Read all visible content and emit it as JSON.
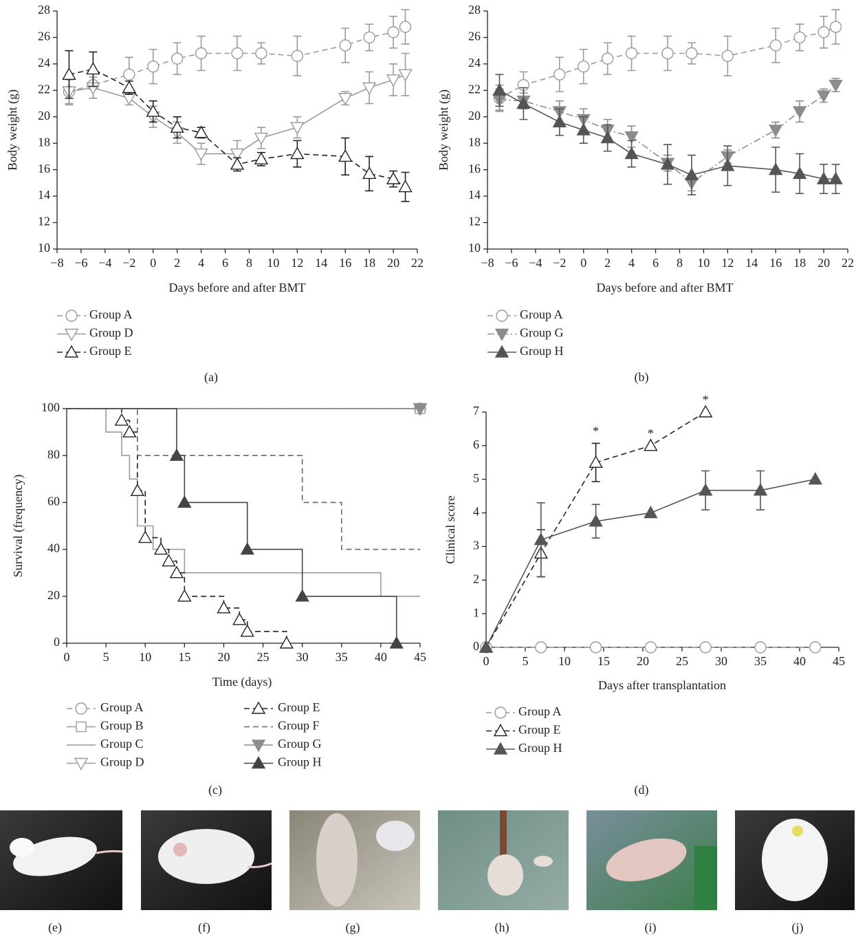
{
  "chart_data": [
    {
      "type": "line",
      "panel_label": "(a)",
      "xlabel": "Days before and after BMT",
      "ylabel": "Body weight (g)",
      "xlim": [
        -8,
        22
      ],
      "ylim": [
        10,
        28
      ],
      "xticks": [
        {
          "value": -8,
          "label": "−8"
        },
        {
          "value": -6,
          "label": "−6"
        },
        {
          "value": -4,
          "label": "−4"
        },
        {
          "value": -2,
          "label": "−2"
        },
        0,
        2,
        4,
        6,
        8,
        10,
        12,
        14,
        16,
        18,
        20,
        22
      ],
      "yticks": [
        10,
        12,
        14,
        16,
        18,
        20,
        22,
        24,
        26,
        28
      ],
      "series": [
        {
          "name": "Group A",
          "color": "#9a9a9a",
          "dash": "dashed",
          "marker": "circle",
          "filled": false,
          "x": [
            -7,
            -5,
            -2,
            0,
            2,
            4,
            7,
            9,
            12,
            16,
            18,
            20,
            21
          ],
          "values": [
            21.9,
            22.4,
            23.2,
            23.8,
            24.4,
            24.8,
            24.8,
            24.8,
            24.6,
            25.4,
            26.0,
            26.4,
            26.8
          ],
          "errors": [
            1.0,
            1.0,
            1.3,
            1.3,
            1.2,
            1.3,
            1.3,
            0.8,
            1.5,
            1.3,
            1.0,
            1.2,
            1.3
          ]
        },
        {
          "name": "Group D",
          "color": "#9a9a9a",
          "dash": "solid",
          "marker": "triangle-down",
          "filled": false,
          "x": [
            -7,
            -5,
            -2,
            0,
            2,
            4,
            7,
            9,
            12,
            16,
            18,
            20,
            21
          ],
          "values": [
            21.9,
            22.2,
            21.4,
            20.0,
            18.8,
            17.2,
            17.2,
            18.4,
            19.2,
            21.4,
            22.2,
            22.8,
            23.2
          ],
          "errors": [
            0.9,
            0.8,
            0.5,
            0.8,
            0.8,
            0.8,
            1.0,
            0.8,
            0.8,
            0.5,
            1.2,
            1.2,
            1.6
          ]
        },
        {
          "name": "Group E",
          "color": "#222222",
          "dash": "dashed",
          "marker": "triangle-up",
          "filled": false,
          "x": [
            -7,
            -5,
            -2,
            0,
            2,
            4,
            7,
            9,
            12,
            16,
            18,
            20,
            21
          ],
          "values": [
            23.2,
            23.6,
            22.2,
            20.4,
            19.2,
            18.8,
            16.4,
            16.8,
            17.2,
            17.0,
            15.7,
            15.3,
            14.7
          ],
          "errors": [
            1.8,
            1.3,
            0.5,
            0.8,
            0.8,
            0.4,
            0.5,
            0.5,
            1.0,
            1.4,
            1.3,
            0.6,
            1.1
          ]
        }
      ]
    },
    {
      "type": "line",
      "panel_label": "(b)",
      "xlabel": "Days before and after BMT",
      "ylabel": "Body weight (g)",
      "xlim": [
        -8,
        22
      ],
      "ylim": [
        10,
        28
      ],
      "xticks": [
        {
          "value": -8,
          "label": "−8"
        },
        {
          "value": -6,
          "label": "−6"
        },
        {
          "value": -4,
          "label": "−4"
        },
        {
          "value": -2,
          "label": "−2"
        },
        0,
        2,
        4,
        6,
        8,
        10,
        12,
        14,
        16,
        18,
        20,
        22
      ],
      "yticks": [
        10,
        12,
        14,
        16,
        18,
        20,
        22,
        24,
        26,
        28
      ],
      "series": [
        {
          "name": "Group A",
          "color": "#9a9a9a",
          "dash": "dashed",
          "marker": "circle",
          "filled": false,
          "x": [
            -7,
            -5,
            -2,
            0,
            2,
            4,
            7,
            9,
            12,
            16,
            18,
            20,
            21
          ],
          "values": [
            21.4,
            22.4,
            23.2,
            23.8,
            24.4,
            24.8,
            24.8,
            24.8,
            24.6,
            25.4,
            26.0,
            26.4,
            26.8
          ],
          "errors": [
            1.0,
            1.0,
            1.3,
            1.3,
            1.2,
            1.3,
            1.3,
            0.8,
            1.5,
            1.3,
            1.0,
            1.2,
            1.3
          ]
        },
        {
          "name": "Group G",
          "color": "#8c8c8c",
          "dash": "dashdot",
          "marker": "triangle-down",
          "filled": true,
          "x": [
            -7,
            -5,
            -2,
            0,
            2,
            4,
            7,
            9,
            12,
            16,
            18,
            20,
            21
          ],
          "values": [
            21.3,
            21.2,
            20.4,
            19.8,
            19.0,
            18.5,
            16.5,
            15.0,
            17.0,
            19.0,
            20.4,
            21.6,
            22.4
          ],
          "errors": [
            0.8,
            0.6,
            0.8,
            0.8,
            0.8,
            0.8,
            0.6,
            0.6,
            0.5,
            0.6,
            0.8,
            0.5,
            0.5
          ]
        },
        {
          "name": "Group H",
          "color": "#555555",
          "dash": "solid",
          "marker": "triangle-up",
          "filled": true,
          "x": [
            -7,
            -5,
            -2,
            0,
            2,
            4,
            7,
            9,
            12,
            16,
            18,
            20,
            21
          ],
          "values": [
            22.0,
            21.0,
            19.6,
            19.0,
            18.4,
            17.2,
            16.4,
            15.6,
            16.3,
            16.0,
            15.7,
            15.3,
            15.3
          ],
          "errors": [
            1.2,
            1.2,
            1.0,
            1.0,
            1.0,
            1.0,
            1.5,
            1.5,
            1.5,
            1.7,
            1.5,
            1.1,
            1.1
          ]
        }
      ]
    },
    {
      "type": "step",
      "panel_label": "(c)",
      "xlabel": "Time (days)",
      "ylabel": "Survival (frequency)",
      "xlim": [
        0,
        45
      ],
      "ylim": [
        0,
        100
      ],
      "xticks": [
        0,
        5,
        10,
        15,
        20,
        25,
        30,
        35,
        40,
        45
      ],
      "yticks": [
        0,
        20,
        40,
        60,
        80,
        100
      ],
      "series": [
        {
          "name": "Group A",
          "color": "#9a9a9a",
          "dash": "dashed",
          "marker": "circle",
          "filled": false,
          "x": [
            0,
            45
          ],
          "values": [
            100,
            100
          ]
        },
        {
          "name": "Group B",
          "color": "#9a9a9a",
          "dash": "solid",
          "marker": "square",
          "filled": false,
          "x": [
            0,
            45
          ],
          "values": [
            100,
            100
          ]
        },
        {
          "name": "Group C",
          "color": "#9a9a9a",
          "dash": "solid",
          "marker": "none",
          "filled": false,
          "x": [
            0,
            5,
            7,
            8,
            9,
            11,
            15,
            40,
            45
          ],
          "values": [
            100,
            90,
            80,
            70,
            50,
            40,
            30,
            20,
            20
          ]
        },
        {
          "name": "Group D",
          "color": "#9a9a9a",
          "dash": "solid",
          "marker": "triangle-down",
          "filled": false,
          "x": [
            0,
            45
          ],
          "values": [
            100,
            100
          ]
        },
        {
          "name": "Group E",
          "color": "#222222",
          "dash": "dashed",
          "marker": "triangle-up",
          "filled": false,
          "x": [
            0,
            7,
            8,
            9,
            10,
            12,
            13,
            14,
            15,
            20,
            22,
            23,
            28
          ],
          "values": [
            100,
            95,
            90,
            65,
            45,
            40,
            35,
            30,
            20,
            15,
            10,
            5,
            0
          ]
        },
        {
          "name": "Group F",
          "color": "#666666",
          "dash": "dashed",
          "marker": "none",
          "filled": false,
          "x": [
            0,
            9,
            30,
            35,
            45
          ],
          "values": [
            100,
            80,
            60,
            40,
            40
          ]
        },
        {
          "name": "Group G",
          "color": "#8c8c8c",
          "dash": "solid",
          "marker": "triangle-down",
          "filled": true,
          "x": [
            0,
            45
          ],
          "values": [
            100,
            100
          ]
        },
        {
          "name": "Group H",
          "color": "#444444",
          "dash": "solid",
          "marker": "triangle-up",
          "filled": true,
          "x": [
            0,
            14,
            15,
            23,
            30,
            42
          ],
          "values": [
            100,
            80,
            60,
            40,
            20,
            0
          ]
        }
      ]
    },
    {
      "type": "line",
      "panel_label": "(d)",
      "xlabel": "Days after transplantation",
      "ylabel": "Clinical score",
      "xlim": [
        0,
        45
      ],
      "ylim": [
        0,
        7
      ],
      "xticks": [
        0,
        5,
        10,
        15,
        20,
        25,
        30,
        35,
        40,
        45
      ],
      "yticks": [
        0,
        1,
        2,
        3,
        4,
        5,
        6,
        7
      ],
      "annotations": [
        {
          "x": 14,
          "text": "*"
        },
        {
          "x": 21,
          "text": "*"
        },
        {
          "x": 28,
          "text": "*"
        }
      ],
      "series": [
        {
          "name": "Group A",
          "color": "#9a9a9a",
          "dash": "dashed",
          "marker": "circle",
          "filled": false,
          "x": [
            0,
            7,
            14,
            21,
            28,
            35,
            42
          ],
          "values": [
            0,
            0,
            0,
            0,
            0,
            0,
            0
          ],
          "errors": [
            null,
            null,
            null,
            null,
            null,
            null,
            null
          ]
        },
        {
          "name": "Group E",
          "color": "#222222",
          "dash": "dashed",
          "marker": "triangle-up",
          "filled": false,
          "x": [
            0,
            7,
            14,
            21,
            28
          ],
          "values": [
            0,
            2.8,
            5.5,
            6.0,
            7.0
          ],
          "errors": [
            null,
            0.7,
            0.57,
            null,
            null
          ]
        },
        {
          "name": "Group H",
          "color": "#555555",
          "dash": "solid",
          "marker": "triangle-up",
          "filled": true,
          "x": [
            0,
            7,
            14,
            21,
            28,
            35,
            42
          ],
          "values": [
            0,
            3.2,
            3.75,
            4.0,
            4.67,
            4.67,
            5.0
          ],
          "errors": [
            null,
            1.1,
            0.5,
            null,
            0.58,
            0.58,
            null
          ]
        }
      ]
    }
  ],
  "photo_panels": [
    {
      "label": "(e)"
    },
    {
      "label": "(f)"
    },
    {
      "label": "(g)"
    },
    {
      "label": "(h)"
    },
    {
      "label": "(i)"
    },
    {
      "label": "(j)"
    }
  ]
}
